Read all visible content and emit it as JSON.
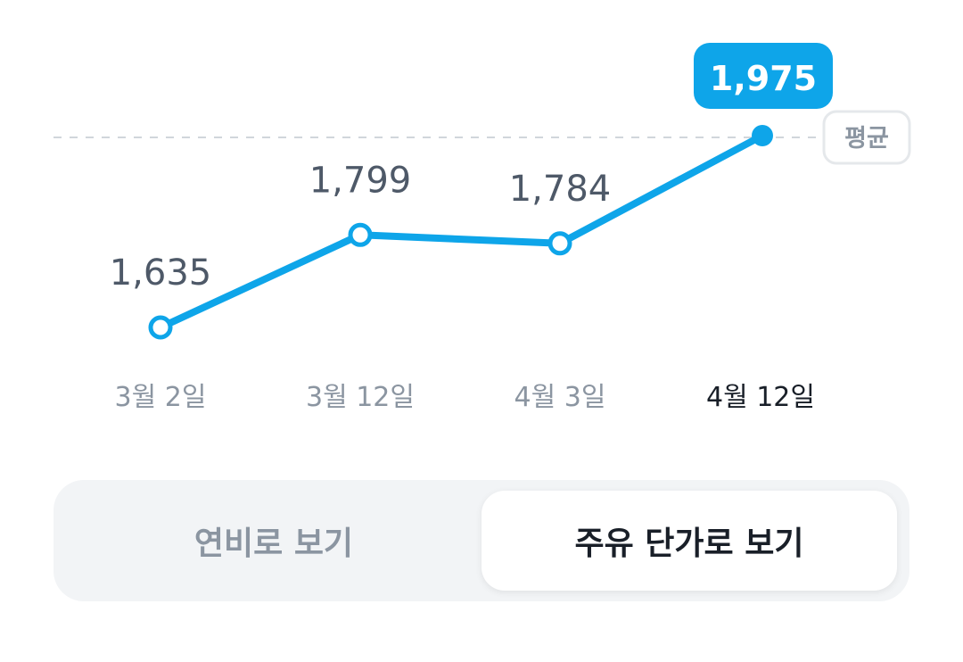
{
  "chart_data": {
    "type": "line",
    "categories": [
      "3월 2일",
      "3월 12일",
      "4월 3일",
      "4월 12일"
    ],
    "values": [
      1635,
      1799,
      1784,
      1975
    ],
    "data_labels": [
      "1,635",
      "1,799",
      "1,784",
      "1,975"
    ],
    "highlight_index": 3,
    "reference_line": {
      "label": "평균",
      "value": 1975
    },
    "colors": {
      "line": "#0ea5e9",
      "highlight_bg": "#0ea5e9",
      "label": "#4e5968",
      "tick": "#8b95a1",
      "tick_active": "#191f28"
    }
  },
  "toggle": {
    "options": [
      "연비로 보기",
      "주유 단가로 보기"
    ],
    "selected_index": 1
  }
}
